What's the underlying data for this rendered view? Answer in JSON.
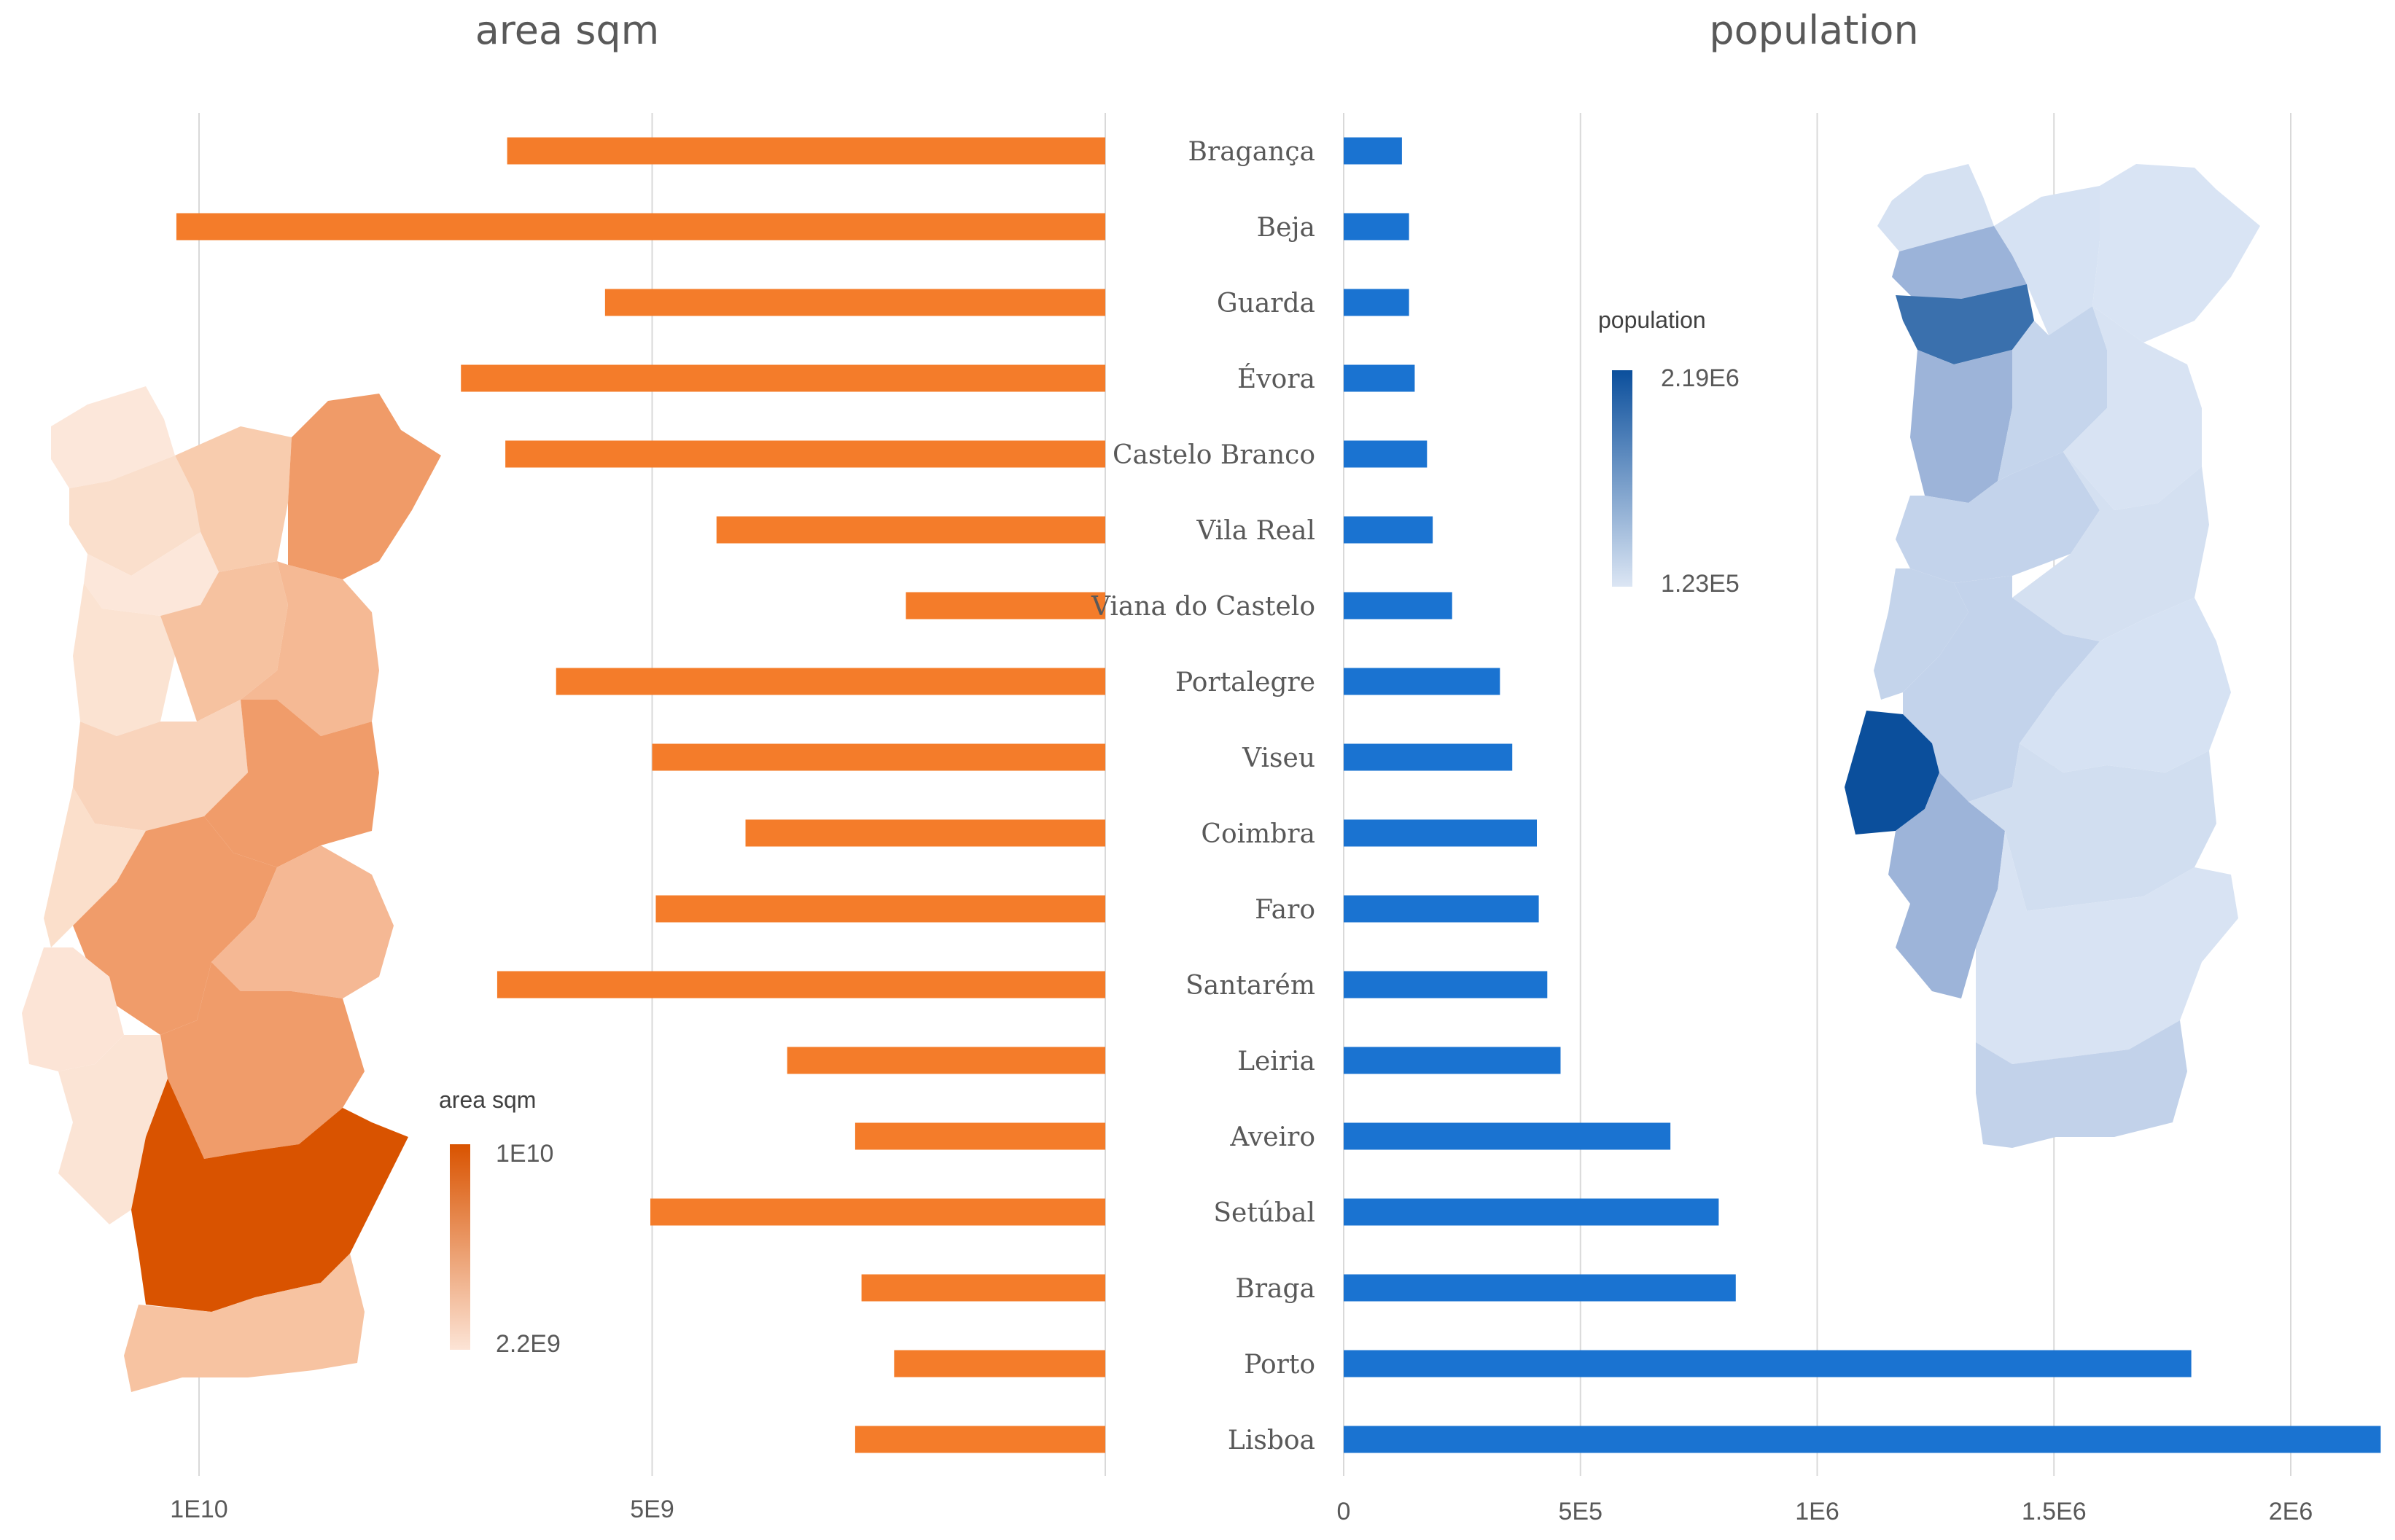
{
  "chart_data": [
    {
      "type": "bar",
      "orientation": "horizontal",
      "direction": "right-to-left",
      "title": "area sqm",
      "categories": [
        "Bragança",
        "Beja",
        "Guarda",
        "Évora",
        "Castelo Branco",
        "Vila Real",
        "Viana do Castelo",
        "Portalegre",
        "Viseu",
        "Coimbra",
        "Faro",
        "Santarém",
        "Leiria",
        "Aveiro",
        "Setúbal",
        "Braga",
        "Porto",
        "Lisboa"
      ],
      "values": [
        6600000000,
        10250000000,
        5520000000,
        7110000000,
        6620000000,
        4290000000,
        2200000000,
        6060000000,
        5000000000,
        3970000000,
        4960000000,
        6710000000,
        3510000000,
        2760000000,
        5020000000,
        2690000000,
        2330000000,
        2760000000
      ],
      "xlim": [
        0,
        10900000000
      ],
      "xticks": [
        10000000000,
        5000000000
      ],
      "xtick_labels": [
        "1E10",
        "5E9"
      ],
      "color": "#F47C2A",
      "legend": {
        "title": "area sqm",
        "max_label": "1E10",
        "min_label": "2.2E9",
        "placement": "bottom-center"
      }
    },
    {
      "type": "bar",
      "orientation": "horizontal",
      "direction": "left-to-right",
      "title": "population",
      "categories": [
        "Bragança",
        "Beja",
        "Guarda",
        "Évora",
        "Castelo Branco",
        "Vila Real",
        "Viana do Castelo",
        "Portalegre",
        "Viseu",
        "Coimbra",
        "Faro",
        "Santarém",
        "Leiria",
        "Aveiro",
        "Setúbal",
        "Braga",
        "Porto",
        "Lisboa"
      ],
      "values": [
        123000,
        138000,
        138000,
        150000,
        176000,
        188000,
        229000,
        330000,
        356000,
        408000,
        412000,
        430000,
        458000,
        690000,
        792000,
        828000,
        1790000,
        2190000
      ],
      "xlim": [
        0,
        2200000
      ],
      "xticks": [
        0,
        500000,
        1000000,
        1500000,
        2000000
      ],
      "xtick_labels": [
        "0",
        "5E5",
        "1E6",
        "1.5E6",
        "2E6"
      ],
      "color": "#1A73D1",
      "legend": {
        "title": "population",
        "max_label": "2.19E6",
        "min_label": "1.23E5",
        "placement": "top-center"
      }
    }
  ],
  "colors": {
    "area_dark": "#D95300",
    "area_light": "#FCE4D6",
    "pop_dark": "#0B4F9C",
    "pop_light": "#DCE6F4",
    "grid": "#D9D9D9",
    "text": "#595959"
  }
}
